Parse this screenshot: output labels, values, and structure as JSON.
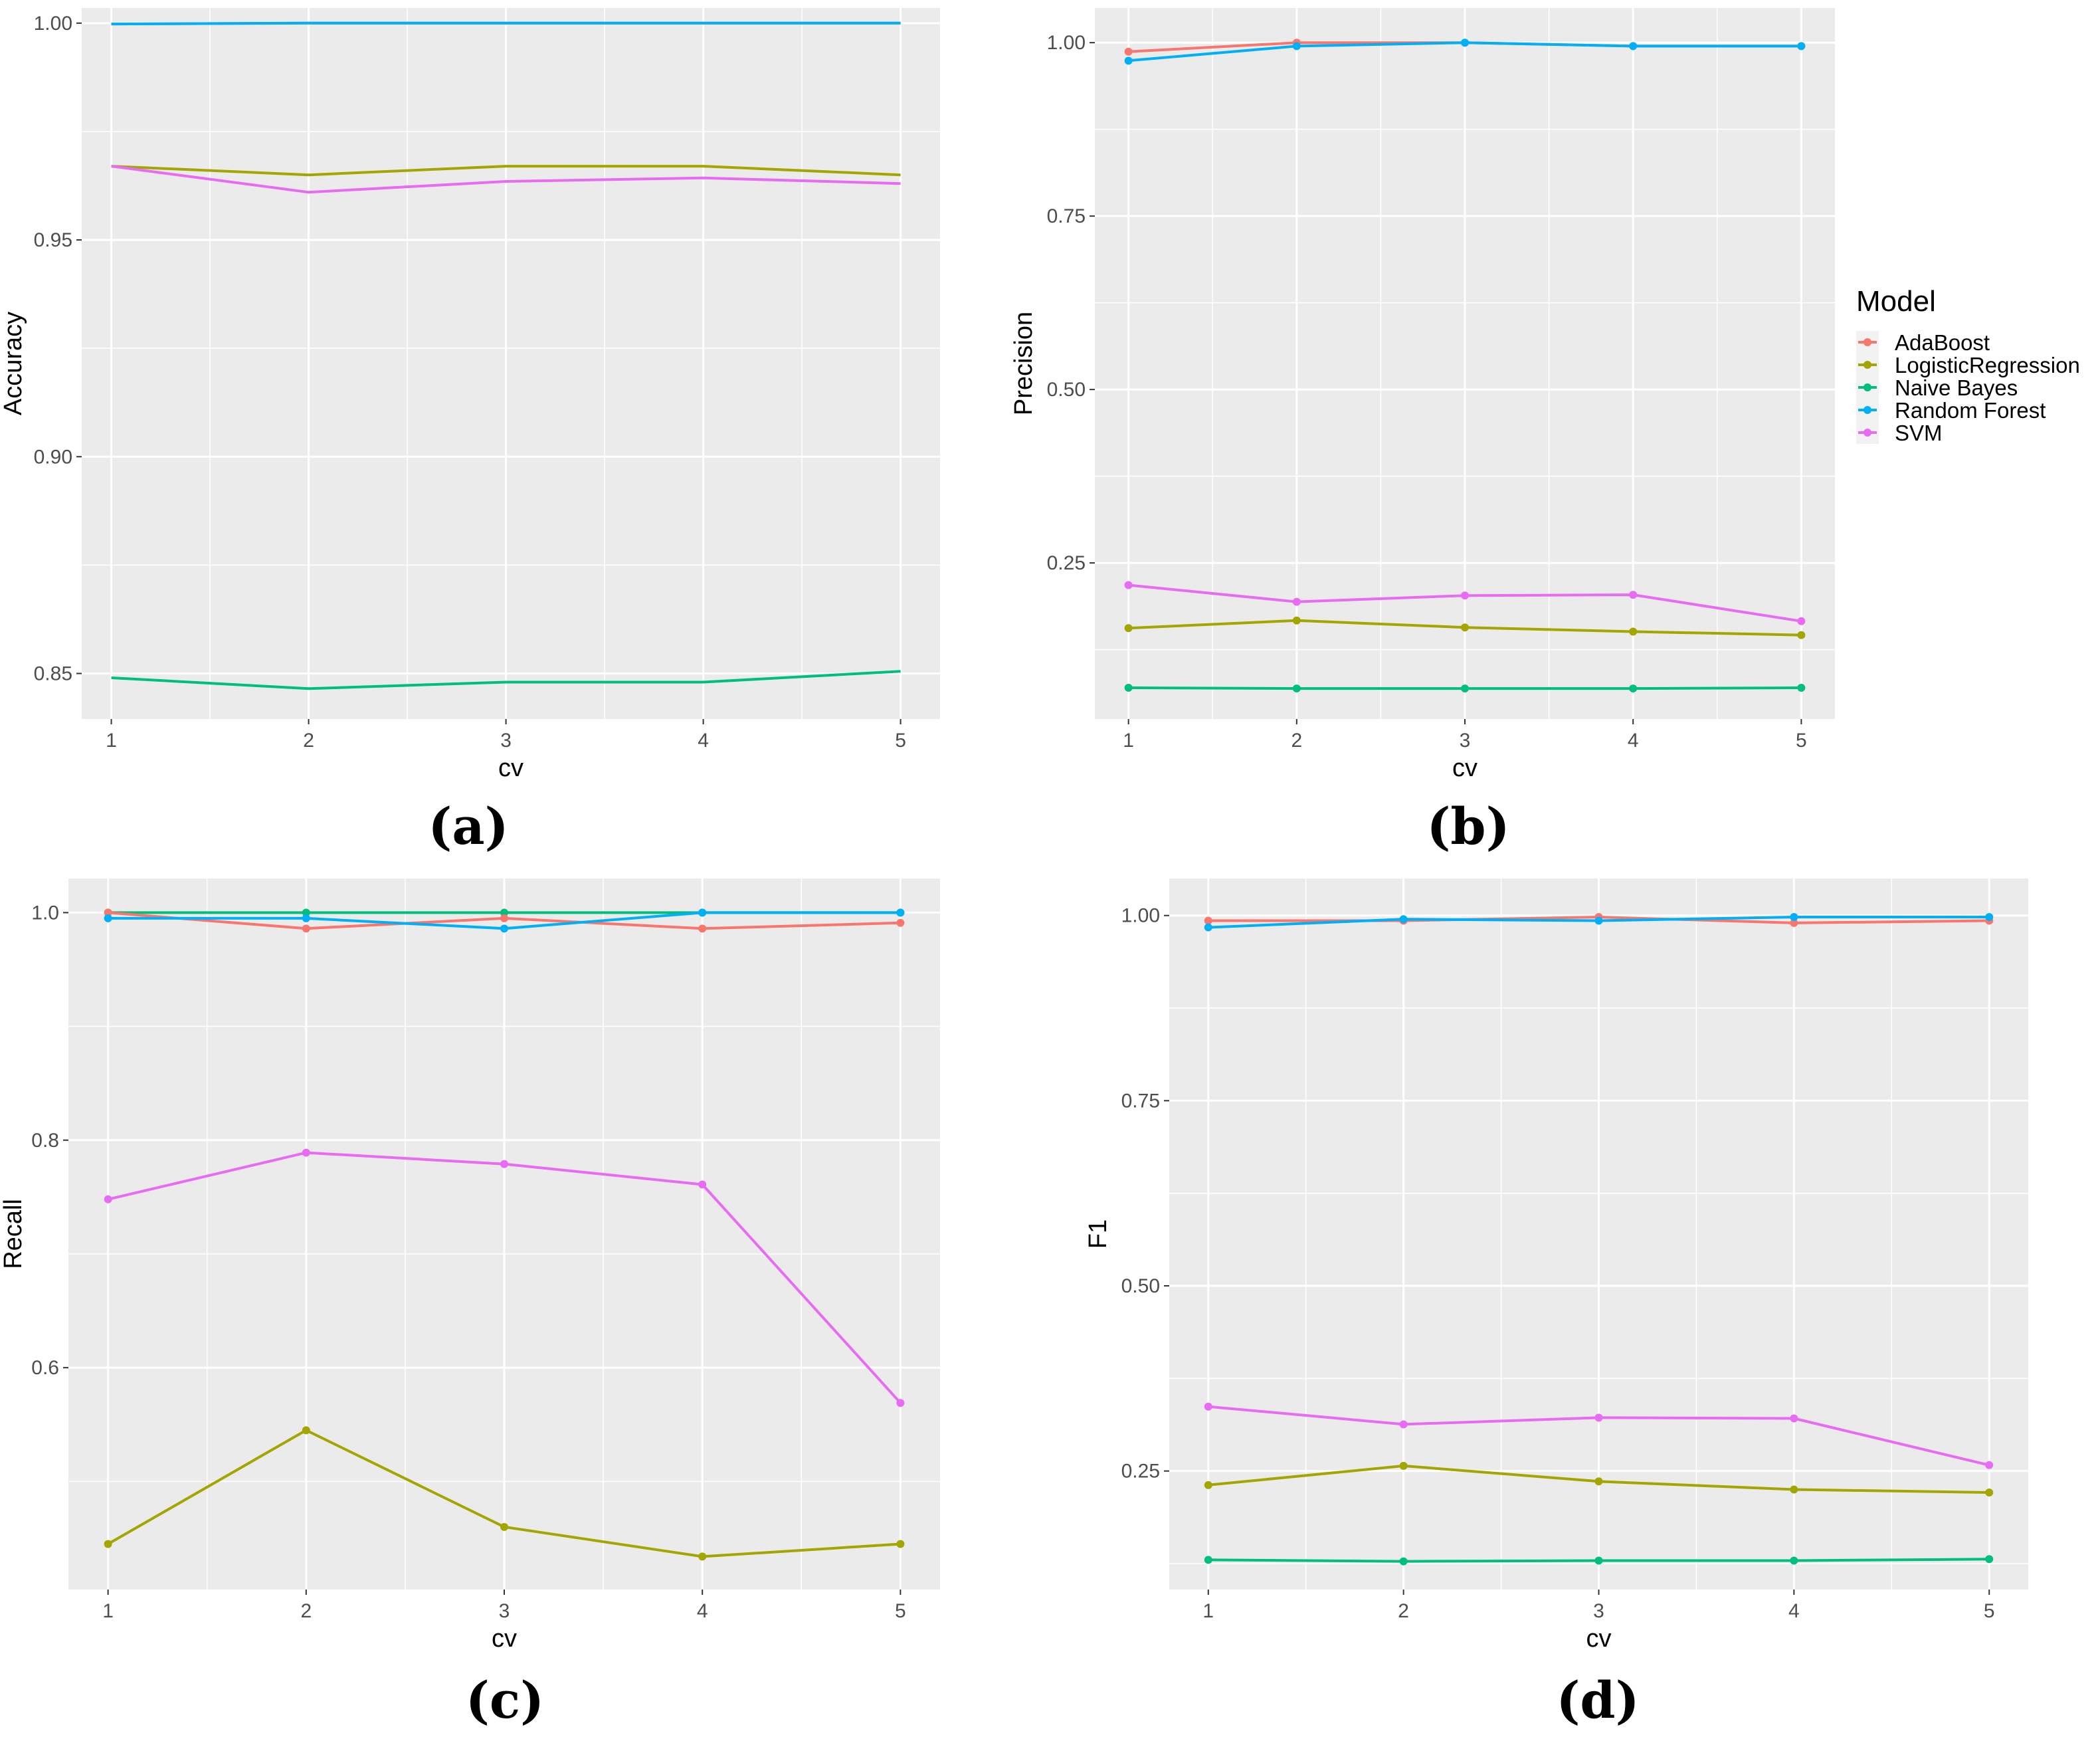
{
  "colors": {
    "AdaBoost": "#F8766D",
    "LogisticRegression": "#A3A500",
    "Naive Bayes": "#00BF7D",
    "Random Forest": "#00B0F6",
    "SVM": "#E76BF3",
    "panel_bg": "#EBEBEB",
    "grid": "#FFFFFF"
  },
  "legend": {
    "title": "Model",
    "items": [
      "AdaBoost",
      "LogisticRegression",
      "Naive Bayes",
      "Random Forest",
      "SVM"
    ]
  },
  "chart_data": [
    {
      "type": "line",
      "panel_label": "(a)",
      "xlabel": "cv",
      "ylabel": "Accuracy",
      "x": [
        1,
        2,
        3,
        4,
        5
      ],
      "xlim": [
        0.85,
        5.2
      ],
      "ylim": [
        0.8395,
        1.0035
      ],
      "yticks": [
        0.85,
        0.9,
        0.95,
        1.0
      ],
      "ytick_labels": [
        "0.85",
        "0.90",
        "0.95",
        "1.00"
      ],
      "markers": false,
      "series": [
        {
          "name": "Naive Bayes",
          "values": [
            0.849,
            0.8465,
            0.848,
            0.848,
            0.8505
          ]
        },
        {
          "name": "LogisticRegression",
          "values": [
            0.967,
            0.965,
            0.967,
            0.967,
            0.965
          ]
        },
        {
          "name": "SVM",
          "values": [
            0.967,
            0.961,
            0.9635,
            0.9643,
            0.963
          ]
        },
        {
          "name": "AdaBoost",
          "values": [
            0.9998,
            1.0,
            1.0,
            1.0,
            1.0
          ]
        },
        {
          "name": "Random Forest",
          "values": [
            0.9998,
            1.0,
            1.0,
            1.0,
            1.0
          ]
        }
      ]
    },
    {
      "type": "line",
      "panel_label": "(b)",
      "xlabel": "cv",
      "ylabel": "Precision",
      "x": [
        1,
        2,
        3,
        4,
        5
      ],
      "xlim": [
        0.8,
        5.2
      ],
      "ylim": [
        0.025,
        1.05
      ],
      "yticks": [
        0.25,
        0.5,
        0.75,
        1.0
      ],
      "ytick_labels": [
        "0.25",
        "0.50",
        "0.75",
        "1.00"
      ],
      "markers": true,
      "series": [
        {
          "name": "Naive Bayes",
          "values": [
            0.07,
            0.069,
            0.069,
            0.069,
            0.07
          ]
        },
        {
          "name": "LogisticRegression",
          "values": [
            0.156,
            0.167,
            0.157,
            0.151,
            0.146
          ]
        },
        {
          "name": "SVM",
          "values": [
            0.218,
            0.194,
            0.203,
            0.204,
            0.166
          ]
        },
        {
          "name": "AdaBoost",
          "values": [
            0.987,
            1.0,
            1.0,
            0.995,
            0.995
          ]
        },
        {
          "name": "Random Forest",
          "values": [
            0.974,
            0.995,
            1.0,
            0.995,
            0.995
          ]
        }
      ]
    },
    {
      "type": "line",
      "panel_label": "(c)",
      "xlabel": "cv",
      "ylabel": "Recall",
      "x": [
        1,
        2,
        3,
        4,
        5
      ],
      "xlim": [
        0.8,
        5.2
      ],
      "ylim": [
        0.405,
        1.03
      ],
      "yticks": [
        0.6,
        0.8,
        1.0
      ],
      "ytick_labels": [
        "0.6",
        "0.8",
        "1.0"
      ],
      "markers": true,
      "series": [
        {
          "name": "LogisticRegression",
          "values": [
            0.445,
            0.545,
            0.46,
            0.434,
            0.445
          ]
        },
        {
          "name": "SVM",
          "values": [
            0.748,
            0.789,
            0.779,
            0.761,
            0.569
          ]
        },
        {
          "name": "Naive Bayes",
          "values": [
            1.0,
            1.0,
            1.0,
            1.0,
            1.0
          ]
        },
        {
          "name": "AdaBoost",
          "values": [
            1.0,
            0.986,
            0.995,
            0.986,
            0.991
          ]
        },
        {
          "name": "Random Forest",
          "values": [
            0.995,
            0.995,
            0.986,
            1.0,
            1.0
          ]
        }
      ]
    },
    {
      "type": "line",
      "panel_label": "(d)",
      "xlabel": "cv",
      "ylabel": "F1",
      "x": [
        1,
        2,
        3,
        4,
        5
      ],
      "xlim": [
        0.8,
        5.2
      ],
      "ylim": [
        0.09,
        1.05
      ],
      "yticks": [
        0.25,
        0.5,
        0.75,
        1.0
      ],
      "ytick_labels": [
        "0.25",
        "0.50",
        "0.75",
        "1.00"
      ],
      "markers": true,
      "series": [
        {
          "name": "Naive Bayes",
          "values": [
            0.13,
            0.128,
            0.129,
            0.129,
            0.131
          ]
        },
        {
          "name": "LogisticRegression",
          "values": [
            0.231,
            0.257,
            0.236,
            0.225,
            0.221
          ]
        },
        {
          "name": "SVM",
          "values": [
            0.337,
            0.313,
            0.322,
            0.321,
            0.258
          ]
        },
        {
          "name": "AdaBoost",
          "values": [
            0.993,
            0.993,
            0.998,
            0.99,
            0.993
          ]
        },
        {
          "name": "Random Forest",
          "values": [
            0.984,
            0.995,
            0.993,
            0.998,
            0.998
          ]
        }
      ]
    }
  ]
}
